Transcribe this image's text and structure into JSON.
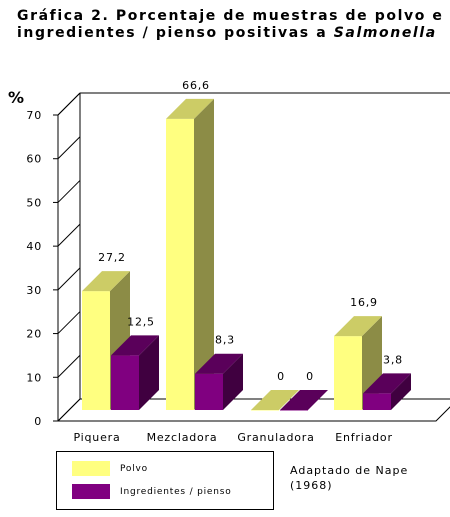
{
  "title": {
    "main": "Gráfica 2. Porcentaje de muestras de polvo e ingredientes / pienso positivas a",
    "italic": "Salmonella"
  },
  "chart_data": {
    "type": "bar",
    "style": "3d-clustered",
    "categories": [
      "Piquera",
      "Mezcladora",
      "Granuladora",
      "Enfriador"
    ],
    "series": [
      {
        "name": "Polvo",
        "values": [
          27.2,
          66.6,
          0,
          16.9
        ],
        "labels": [
          "27,2",
          "66,6",
          "0",
          "16,9"
        ],
        "color": "#ffff80"
      },
      {
        "name": "Ingredientes / pienso",
        "values": [
          12.5,
          8.3,
          0,
          3.8
        ],
        "labels": [
          "12,5",
          "8,3",
          "0",
          "3,8"
        ],
        "color": "#800080"
      }
    ],
    "ylabel": "%",
    "ylim": [
      0,
      70
    ],
    "yticks": [
      "0",
      "10",
      "20",
      "30",
      "40",
      "50",
      "60",
      "70"
    ],
    "grid": false,
    "legend_position": "bottom-left"
  },
  "source_note": {
    "line1": "Adaptado de Nape",
    "line2": "(1968)"
  }
}
